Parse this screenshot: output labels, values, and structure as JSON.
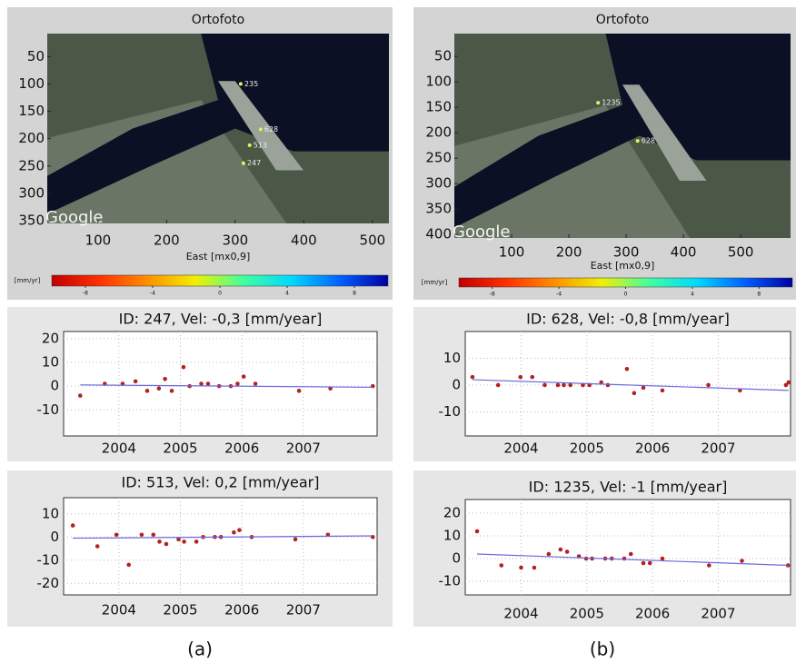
{
  "captions": [
    "(a)",
    "(b)"
  ],
  "chart_data": [
    {
      "type": "map",
      "title": "Ortofoto",
      "xlabel": "East [mx0,9]",
      "watermark": "Google",
      "xlim": [
        26,
        524
      ],
      "ylim": [
        8,
        355
      ],
      "xticks": [
        100,
        200,
        300,
        400,
        500
      ],
      "yticks": [
        50,
        100,
        150,
        200,
        250,
        300,
        350
      ],
      "points": {
        "x": [
          308,
          337,
          321,
          312
        ],
        "y": [
          100,
          183,
          212,
          245
        ],
        "labels": [
          "235",
          "628",
          "513",
          "247"
        ],
        "color": "#e8f060"
      },
      "colorbar": {
        "label": "[mm/yr]",
        "lim": [
          -10,
          10
        ],
        "ticks": [
          -8,
          -4,
          0,
          4,
          8
        ],
        "colors": [
          "#c00000",
          "#ff3000",
          "#ff9000",
          "#f0f000",
          "#40ffa0",
          "#00d8ff",
          "#0060ff",
          "#0000a0"
        ]
      }
    },
    {
      "type": "map",
      "title": "Ortofoto",
      "xlabel": "East [mx0,9]",
      "watermark": "Google",
      "xlim": [
        0,
        587
      ],
      "ylim": [
        5,
        407
      ],
      "xticks": [
        100,
        200,
        300,
        400,
        500
      ],
      "yticks": [
        50,
        100,
        150,
        200,
        250,
        300,
        350,
        400
      ],
      "points": {
        "x": [
          251,
          320
        ],
        "y": [
          141,
          216
        ],
        "labels": [
          "1235",
          "628"
        ],
        "color": "#e8f060"
      },
      "colorbar": {
        "label": "[mm/yr]",
        "lim": [
          -10,
          10
        ],
        "ticks": [
          -8,
          -4,
          0,
          4,
          8
        ],
        "colors": [
          "#c00000",
          "#ff3000",
          "#ff9000",
          "#f0f000",
          "#40ffa0",
          "#00d8ff",
          "#0060ff",
          "#0000a0"
        ]
      }
    },
    {
      "type": "timeseries",
      "title": "ID: 247, Vel: -0,3 [mm/year]",
      "grid": true,
      "xlim": [
        2003.1,
        2008.2
      ],
      "ylim": [
        -21,
        23
      ],
      "xticks": [
        2004,
        2005,
        2006,
        2007
      ],
      "yticks": [
        -10,
        0,
        10,
        20
      ],
      "series": [
        {
          "style": "points",
          "color": "#b22222",
          "x": [
            2003.37,
            2003.77,
            2004.06,
            2004.27,
            2004.46,
            2004.65,
            2004.75,
            2004.86,
            2005.05,
            2005.15,
            2005.34,
            2005.45,
            2005.63,
            2005.82,
            2005.93,
            2006.03,
            2006.22,
            2006.93,
            2007.44,
            2008.13
          ],
          "values": [
            -4,
            1,
            1,
            2,
            -2,
            -1,
            3,
            -2,
            8,
            0,
            1,
            1,
            0,
            0,
            1,
            4,
            1,
            -2,
            -1,
            0
          ]
        },
        {
          "style": "line",
          "color": "#6a6ae0",
          "x": [
            2003.37,
            2008.13
          ],
          "values": [
            0.5,
            -0.5
          ]
        }
      ]
    },
    {
      "type": "timeseries",
      "title": "ID: 513, Vel: 0,2 [mm/year]",
      "grid": true,
      "xlim": [
        2003.1,
        2008.2
      ],
      "ylim": [
        -25,
        17
      ],
      "xticks": [
        2004,
        2005,
        2006,
        2007
      ],
      "yticks": [
        -20,
        -10,
        0,
        10
      ],
      "series": [
        {
          "style": "points",
          "color": "#b22222",
          "x": [
            2003.25,
            2003.65,
            2003.96,
            2004.16,
            2004.37,
            2004.56,
            2004.66,
            2004.77,
            2004.97,
            2005.06,
            2005.26,
            2005.37,
            2005.56,
            2005.66,
            2005.87,
            2005.96,
            2006.16,
            2006.87,
            2007.4,
            2008.13
          ],
          "values": [
            5,
            -4,
            1,
            -12,
            1,
            1,
            -2,
            -3,
            -1,
            -2,
            -2,
            0,
            0,
            0,
            2,
            3,
            0,
            -1,
            1,
            0
          ]
        },
        {
          "style": "line",
          "color": "#6a6ae0",
          "x": [
            2003.25,
            2008.13
          ],
          "values": [
            -0.5,
            0.5
          ]
        }
      ]
    },
    {
      "type": "timeseries",
      "title": "ID: 628, Vel: -0,8 [mm/year]",
      "grid": true,
      "xlim": [
        2003.15,
        2008.1
      ],
      "ylim": [
        -19,
        20
      ],
      "xticks": [
        2004,
        2005,
        2006,
        2007
      ],
      "yticks": [
        -10,
        0,
        10
      ],
      "series": [
        {
          "style": "points",
          "color": "#b22222",
          "x": [
            2003.26,
            2003.65,
            2003.99,
            2004.17,
            2004.36,
            2004.56,
            2004.65,
            2004.75,
            2004.94,
            2005.04,
            2005.22,
            2005.32,
            2005.61,
            2005.72,
            2005.86,
            2006.15,
            2006.85,
            2007.33,
            2008.03,
            2008.07
          ],
          "values": [
            3,
            0,
            3,
            3,
            0,
            0,
            0,
            0,
            0,
            0,
            1,
            0,
            6,
            -3,
            -1,
            -2,
            0,
            -2,
            0,
            1
          ]
        },
        {
          "style": "line",
          "color": "#6a6ae0",
          "x": [
            2003.26,
            2008.07
          ],
          "values": [
            2,
            -2
          ]
        }
      ]
    },
    {
      "type": "timeseries",
      "title": "ID: 1235, Vel: -1 [mm/year]",
      "grid": true,
      "xlim": [
        2003.15,
        2008.1
      ],
      "ylim": [
        -16,
        26
      ],
      "xticks": [
        2004,
        2005,
        2006,
        2007
      ],
      "yticks": [
        -10,
        0,
        10,
        20
      ],
      "series": [
        {
          "style": "points",
          "color": "#b22222",
          "x": [
            2003.33,
            2003.7,
            2004.0,
            2004.2,
            2004.42,
            2004.6,
            2004.7,
            2004.88,
            2004.99,
            2005.08,
            2005.28,
            2005.38,
            2005.57,
            2005.67,
            2005.86,
            2005.96,
            2006.15,
            2006.86,
            2007.36,
            2008.06
          ],
          "values": [
            12,
            -3,
            -4,
            -4,
            2,
            4,
            3,
            1,
            0,
            0,
            0,
            0,
            0,
            2,
            -2,
            -2,
            0,
            -3,
            -1,
            -3
          ]
        },
        {
          "style": "line",
          "color": "#6a6ae0",
          "x": [
            2003.33,
            2008.06
          ],
          "values": [
            2,
            -3
          ]
        }
      ]
    }
  ]
}
